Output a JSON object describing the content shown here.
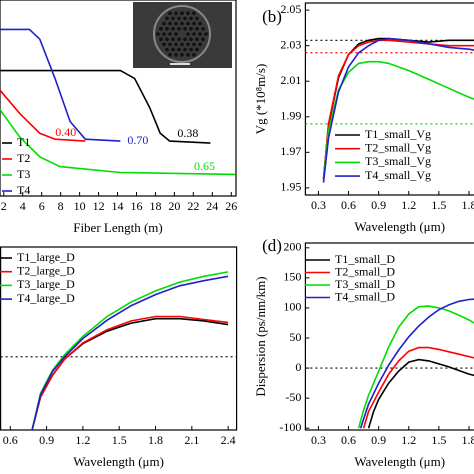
{
  "chart_data": [
    {
      "type": "line",
      "xlabel": "Fiber Length (m)",
      "xlim": [
        1.6,
        26.5
      ],
      "ylim": [
        0,
        1
      ],
      "xticks": [
        2,
        4,
        6,
        8,
        10,
        12,
        14,
        16,
        18,
        20,
        22,
        24,
        26
      ],
      "series": [
        {
          "name": "T1",
          "color": "#000000",
          "label": "0.38",
          "x": [
            1.6,
            14.3,
            15.8,
            17.4,
            18.5,
            19.5,
            23.8
          ],
          "values": [
            0.64,
            0.64,
            0.6,
            0.45,
            0.32,
            0.28,
            0.27
          ]
        },
        {
          "name": "T2",
          "color": "#ff0000",
          "label": "0.40",
          "x": [
            1.6,
            3.7,
            5.8,
            7.4,
            10.6
          ],
          "values": [
            0.54,
            0.42,
            0.32,
            0.29,
            0.28
          ]
        },
        {
          "name": "T3",
          "color": "#00dd00",
          "label": "0.65",
          "x": [
            1.6,
            3.7,
            5.8,
            7.9,
            14.3,
            26.4
          ],
          "values": [
            0.44,
            0.3,
            0.2,
            0.15,
            0.12,
            0.11
          ]
        },
        {
          "name": "T4",
          "color": "#2020cc",
          "label": "0.70",
          "x": [
            1.6,
            4.7,
            5.8,
            7.4,
            9.0,
            10.6,
            14.3
          ],
          "values": [
            0.85,
            0.85,
            0.8,
            0.6,
            0.38,
            0.29,
            0.28
          ]
        }
      ]
    },
    {
      "type": "line",
      "panel_label": "(b)",
      "xlabel": "Wavelength (μm)",
      "ylabel": "Vg (*10⁸m/s)",
      "xlim": [
        0.17,
        1.9
      ],
      "ylim": [
        1.946,
        2.054
      ],
      "xticks": [
        0.3,
        0.6,
        0.9,
        1.2,
        1.5,
        1.8
      ],
      "yticks": [
        1.95,
        1.97,
        1.99,
        2.01,
        2.03,
        2.05
      ],
      "hlines": [
        {
          "value": 2.033,
          "color": "#000000"
        },
        {
          "value": 2.026,
          "color": "#ff0000"
        },
        {
          "value": 1.986,
          "color": "#00dd00"
        }
      ],
      "series": [
        {
          "name": "T1_small_Vg",
          "color": "#000000",
          "x": [
            0.35,
            0.4,
            0.5,
            0.6,
            0.7,
            0.8,
            0.9,
            1.0,
            1.2,
            1.4,
            1.6,
            1.8,
            1.9
          ],
          "values": [
            1.955,
            1.985,
            2.012,
            2.025,
            2.031,
            2.033,
            2.034,
            2.034,
            2.033,
            2.032,
            2.033,
            2.033,
            2.033
          ]
        },
        {
          "name": "T2_small_Vg",
          "color": "#ff0000",
          "x": [
            0.35,
            0.4,
            0.5,
            0.6,
            0.7,
            0.8,
            0.9,
            1.0,
            1.2,
            1.4,
            1.6,
            1.8,
            1.9
          ],
          "values": [
            1.955,
            1.986,
            2.013,
            2.025,
            2.03,
            2.032,
            2.033,
            2.033,
            2.032,
            2.031,
            2.03,
            2.03,
            2.03
          ]
        },
        {
          "name": "T3_small_Vg",
          "color": "#00dd00",
          "x": [
            0.35,
            0.4,
            0.5,
            0.6,
            0.7,
            0.8,
            0.9,
            1.0,
            1.2,
            1.4,
            1.6,
            1.8,
            1.9
          ],
          "values": [
            1.955,
            1.982,
            2.005,
            2.015,
            2.02,
            2.021,
            2.021,
            2.02,
            2.016,
            2.011,
            2.006,
            2.001,
            1.999
          ]
        },
        {
          "name": "T4_small_Vg",
          "color": "#2020cc",
          "x": [
            0.35,
            0.4,
            0.5,
            0.6,
            0.7,
            0.8,
            0.9,
            1.0,
            1.2,
            1.4,
            1.6,
            1.8,
            1.9
          ],
          "values": [
            1.953,
            1.978,
            2.004,
            2.018,
            2.026,
            2.03,
            2.033,
            2.034,
            2.033,
            2.031,
            2.029,
            2.028,
            2.027
          ]
        }
      ]
    },
    {
      "type": "line",
      "xlabel": "Wavelength (μm)",
      "xlim": [
        0.52,
        2.47
      ],
      "ylim": [
        -100,
        150
      ],
      "xticks": [
        0.6,
        0.9,
        1.2,
        1.5,
        1.8,
        2.1,
        2.4
      ],
      "hlines": [
        {
          "value": 0,
          "color": "#000000"
        }
      ],
      "series": [
        {
          "name": "T1_large_D",
          "color": "#000000",
          "x": [
            0.78,
            0.85,
            0.95,
            1.05,
            1.2,
            1.4,
            1.6,
            1.8,
            2.0,
            2.2,
            2.4
          ],
          "values": [
            -100,
            -55,
            -25,
            -3,
            18,
            35,
            46,
            52,
            52,
            49,
            44
          ]
        },
        {
          "name": "T2_large_D",
          "color": "#ff0000",
          "x": [
            0.78,
            0.85,
            0.95,
            1.05,
            1.2,
            1.4,
            1.6,
            1.8,
            2.0,
            2.2,
            2.4
          ],
          "values": [
            -100,
            -55,
            -25,
            -3,
            19,
            37,
            49,
            55,
            55,
            51,
            47
          ]
        },
        {
          "name": "T3_large_D",
          "color": "#00dd00",
          "x": [
            0.78,
            0.85,
            0.95,
            1.05,
            1.2,
            1.4,
            1.6,
            1.8,
            2.0,
            2.2,
            2.4
          ],
          "values": [
            -100,
            -50,
            -18,
            3,
            28,
            55,
            75,
            90,
            102,
            110,
            116
          ]
        },
        {
          "name": "T4_large_D",
          "color": "#2020cc",
          "x": [
            0.78,
            0.85,
            0.95,
            1.05,
            1.2,
            1.4,
            1.6,
            1.8,
            2.0,
            2.2,
            2.4
          ],
          "values": [
            -100,
            -52,
            -20,
            0,
            25,
            50,
            70,
            85,
            97,
            104,
            110
          ]
        }
      ]
    },
    {
      "type": "line",
      "panel_label": "(d)",
      "xlabel": "Wavelength (μm)",
      "ylabel": "Dispersion (ps/nm/km)",
      "xlim": [
        0.17,
        1.9
      ],
      "ylim": [
        -103,
        208
      ],
      "xticks": [
        0.3,
        0.6,
        0.9,
        1.2,
        1.5,
        1.8
      ],
      "yticks": [
        -100,
        -50,
        0,
        50,
        100,
        150,
        200
      ],
      "hlines": [
        {
          "value": 0,
          "color": "#000000"
        }
      ],
      "series": [
        {
          "name": "T1_small_D",
          "color": "#000000",
          "x": [
            0.8,
            0.85,
            0.9,
            1.0,
            1.1,
            1.2,
            1.3,
            1.4,
            1.5,
            1.6,
            1.7,
            1.8,
            1.9
          ],
          "values": [
            -100,
            -72,
            -52,
            -25,
            -5,
            10,
            14,
            12,
            7,
            2,
            -4,
            -10,
            -14
          ]
        },
        {
          "name": "T2_small_D",
          "color": "#ff0000",
          "x": [
            0.75,
            0.8,
            0.9,
            1.0,
            1.1,
            1.2,
            1.3,
            1.4,
            1.5,
            1.6,
            1.7,
            1.8,
            1.9
          ],
          "values": [
            -100,
            -72,
            -40,
            -10,
            12,
            28,
            34,
            34,
            31,
            27,
            23,
            19,
            15
          ]
        },
        {
          "name": "T3_small_D",
          "color": "#00dd00",
          "x": [
            0.7,
            0.75,
            0.8,
            0.9,
            1.0,
            1.1,
            1.2,
            1.3,
            1.4,
            1.5,
            1.6,
            1.7,
            1.8,
            1.9
          ],
          "values": [
            -100,
            -70,
            -45,
            -5,
            35,
            68,
            90,
            102,
            103,
            100,
            95,
            88,
            80,
            70
          ]
        },
        {
          "name": "T4_small_D",
          "color": "#2020cc",
          "x": [
            0.72,
            0.8,
            0.9,
            1.0,
            1.1,
            1.2,
            1.3,
            1.4,
            1.5,
            1.6,
            1.7,
            1.8,
            1.9
          ],
          "values": [
            -100,
            -60,
            -25,
            5,
            30,
            52,
            70,
            85,
            97,
            105,
            111,
            114,
            115
          ]
        }
      ]
    }
  ]
}
